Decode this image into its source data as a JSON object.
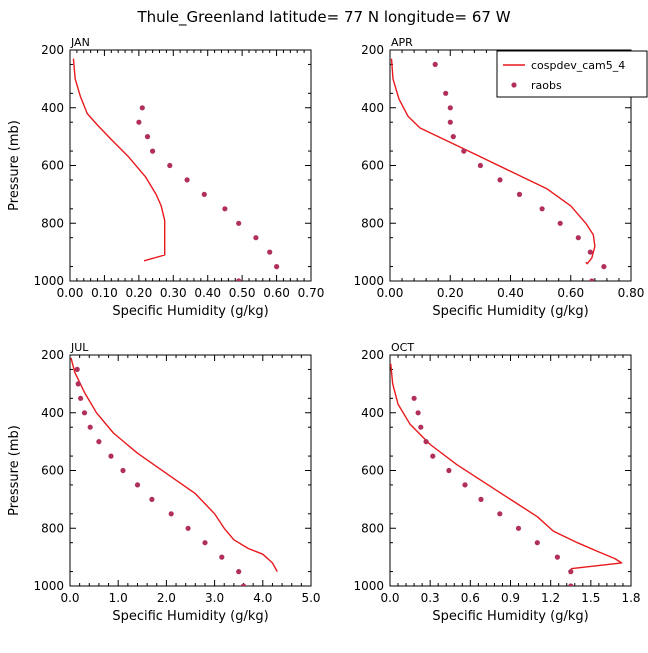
{
  "title": "Thule_Greenland   latitude= 77 N longitude= 67 W",
  "legend": {
    "model_label": "cospdev_cam5_4",
    "obs_label": "raobs",
    "model_color": "#e8191c",
    "obs_color": "#b0305a"
  },
  "chart_data": [
    {
      "type": "line",
      "panel": "JAN",
      "xlabel": "Specific Humidity (g/kg)",
      "ylabel": "Pressure (mb)",
      "xlim": [
        0,
        0.7
      ],
      "ylim": [
        200,
        1000
      ],
      "y_inverted": true,
      "xticks": [
        0.0,
        0.1,
        0.2,
        0.3,
        0.4,
        0.5,
        0.6,
        0.7
      ],
      "xtick_labels": [
        "0.00",
        "0.10",
        "0.20",
        "0.30",
        "0.40",
        "0.50",
        "0.60",
        "0.70"
      ],
      "yticks": [
        200,
        400,
        600,
        800,
        1000
      ],
      "series": [
        {
          "name": "cospdev_cam5_4",
          "style": "line",
          "x": [
            0.01,
            0.015,
            0.03,
            0.05,
            0.08,
            0.12,
            0.17,
            0.22,
            0.25,
            0.265,
            0.275,
            0.275,
            0.275,
            0.275,
            0.215
          ],
          "y": [
            230,
            300,
            360,
            420,
            460,
            510,
            570,
            640,
            700,
            740,
            790,
            830,
            870,
            910,
            930
          ]
        },
        {
          "name": "raobs",
          "style": "points",
          "x": [
            0.21,
            0.2,
            0.225,
            0.24,
            0.29,
            0.34,
            0.39,
            0.45,
            0.49,
            0.54,
            0.58,
            0.6,
            0.49
          ],
          "y": [
            400,
            450,
            500,
            550,
            600,
            650,
            700,
            750,
            800,
            850,
            900,
            950,
            1000
          ]
        }
      ]
    },
    {
      "type": "line",
      "panel": "APR",
      "xlabel": "Specific Humidity (g/kg)",
      "ylabel": "",
      "xlim": [
        0,
        0.8
      ],
      "ylim": [
        200,
        1000
      ],
      "y_inverted": true,
      "xticks": [
        0.0,
        0.2,
        0.4,
        0.6,
        0.8
      ],
      "xtick_labels": [
        "0.00",
        "0.20",
        "0.40",
        "0.60",
        "0.80"
      ],
      "yticks": [
        200,
        400,
        600,
        800,
        1000
      ],
      "series": [
        {
          "name": "cospdev_cam5_4",
          "style": "line",
          "x": [
            0.005,
            0.01,
            0.03,
            0.06,
            0.1,
            0.18,
            0.28,
            0.4,
            0.52,
            0.6,
            0.65,
            0.675,
            0.68,
            0.67,
            0.655,
            0.65
          ],
          "y": [
            230,
            300,
            370,
            430,
            470,
            510,
            560,
            620,
            680,
            740,
            800,
            840,
            880,
            920,
            940,
            935
          ]
        },
        {
          "name": "raobs",
          "style": "points",
          "x": [
            0.15,
            0.185,
            0.2,
            0.2,
            0.21,
            0.245,
            0.3,
            0.365,
            0.43,
            0.505,
            0.565,
            0.625,
            0.665,
            0.71,
            0.67
          ],
          "y": [
            250,
            350,
            400,
            450,
            500,
            550,
            600,
            650,
            700,
            750,
            800,
            850,
            900,
            950,
            1000
          ]
        }
      ]
    },
    {
      "type": "line",
      "panel": "JUL",
      "xlabel": "Specific Humidity (g/kg)",
      "ylabel": "Pressure (mb)",
      "xlim": [
        0,
        5.0
      ],
      "ylim": [
        200,
        1000
      ],
      "y_inverted": true,
      "xticks": [
        0,
        1,
        2,
        3,
        4,
        5
      ],
      "xtick_labels": [
        "0.0",
        "1.0",
        "2.0",
        "3.0",
        "4.0",
        "5.0"
      ],
      "yticks": [
        200,
        400,
        600,
        800,
        1000
      ],
      "series": [
        {
          "name": "cospdev_cam5_4",
          "style": "line",
          "x": [
            0.02,
            0.1,
            0.3,
            0.55,
            0.9,
            1.4,
            2.0,
            2.6,
            3.0,
            3.2,
            3.4,
            3.7,
            4.0,
            4.2,
            4.3
          ],
          "y": [
            210,
            260,
            330,
            400,
            470,
            540,
            610,
            680,
            750,
            800,
            840,
            870,
            890,
            920,
            950
          ]
        },
        {
          "name": "raobs",
          "style": "points",
          "x": [
            0.15,
            0.17,
            0.22,
            0.3,
            0.42,
            0.6,
            0.85,
            1.1,
            1.4,
            1.7,
            2.1,
            2.45,
            2.8,
            3.15,
            3.5,
            3.6
          ],
          "y": [
            250,
            300,
            350,
            400,
            450,
            500,
            550,
            600,
            650,
            700,
            750,
            800,
            850,
            900,
            950,
            1000
          ]
        }
      ]
    },
    {
      "type": "line",
      "panel": "OCT",
      "xlabel": "Specific Humidity (g/kg)",
      "ylabel": "",
      "xlim": [
        0,
        1.8
      ],
      "ylim": [
        200,
        1000
      ],
      "y_inverted": true,
      "xticks": [
        0.0,
        0.3,
        0.6,
        0.9,
        1.2,
        1.5,
        1.8
      ],
      "xtick_labels": [
        "0.0",
        "0.3",
        "0.6",
        "0.9",
        "1.2",
        "1.5",
        "1.8"
      ],
      "yticks": [
        200,
        400,
        600,
        800,
        1000
      ],
      "series": [
        {
          "name": "cospdev_cam5_4",
          "style": "line",
          "x": [
            0.005,
            0.02,
            0.06,
            0.15,
            0.3,
            0.5,
            0.7,
            0.9,
            1.1,
            1.22,
            1.4,
            1.55,
            1.68,
            1.73,
            1.35
          ],
          "y": [
            230,
            300,
            370,
            440,
            510,
            580,
            640,
            700,
            760,
            810,
            850,
            880,
            905,
            920,
            940
          ]
        },
        {
          "name": "raobs",
          "style": "points",
          "x": [
            0.18,
            0.21,
            0.23,
            0.27,
            0.32,
            0.44,
            0.56,
            0.68,
            0.82,
            0.96,
            1.1,
            1.25,
            1.35,
            1.35
          ],
          "y": [
            350,
            400,
            450,
            500,
            550,
            600,
            650,
            700,
            750,
            800,
            850,
            900,
            950,
            1000
          ]
        }
      ]
    }
  ]
}
